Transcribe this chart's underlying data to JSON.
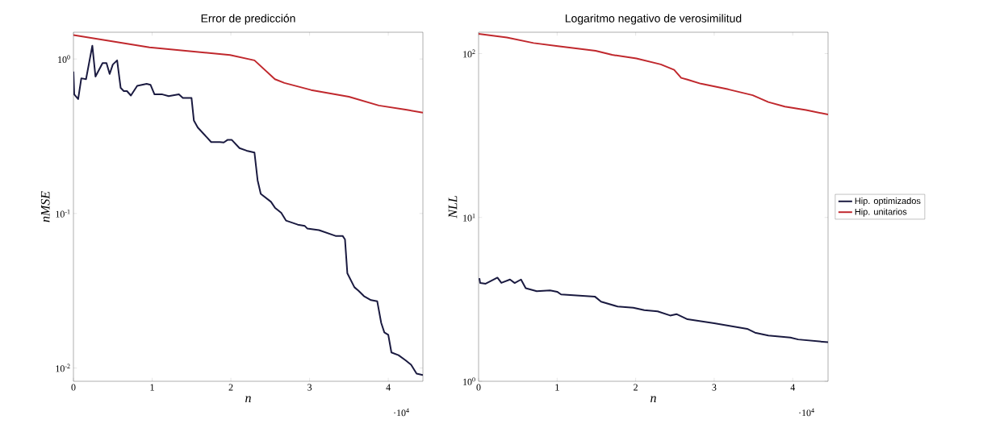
{
  "chart_data": [
    {
      "type": "line",
      "title": "Error de predicción",
      "xlabel": "n",
      "ylabel": "nMSE",
      "log": "y",
      "grid": false,
      "legend": false,
      "line_style": "solid",
      "marker": "none",
      "xlim": [
        0,
        4.44
      ],
      "ylim": [
        0.0082,
        1.49
      ],
      "xticks": [
        0,
        1,
        2,
        3,
        4
      ],
      "yticks": [
        {
          "value": 0.01,
          "label": "10$^{-2}$"
        },
        {
          "value": 0.1,
          "label": "10$^{-1}$"
        },
        {
          "value": 1,
          "label": "10$^{0}$"
        }
      ],
      "annotations": [
        "·10$^{4}$"
      ],
      "series": [
        {
          "color": "#1a1a40",
          "x": [
            0,
            0.01,
            0.06,
            0.1,
            0.16,
            0.24,
            0.28,
            0.37,
            0.42,
            0.46,
            0.5,
            0.555,
            0.6,
            0.64,
            0.68,
            0.73,
            0.81,
            0.93,
            0.98,
            1.03,
            1.13,
            1.21,
            1.34,
            1.39,
            1.5,
            1.53,
            1.58,
            1.75,
            1.86,
            1.91,
            1.96,
            2.01,
            2.11,
            2.2,
            2.3,
            2.34,
            2.38,
            2.51,
            2.56,
            2.64,
            2.7,
            2.85,
            2.94,
            2.97,
            3.12,
            3.33,
            3.42,
            3.45,
            3.48,
            3.57,
            3.62,
            3.69,
            3.78,
            3.86,
            3.91,
            3.95,
            4.0,
            4.04,
            4.13,
            4.22,
            4.29,
            4.36,
            4.44
          ],
          "values": [
            0.83,
            0.59,
            0.55,
            0.75,
            0.74,
            1.22,
            0.77,
            0.94,
            0.94,
            0.8,
            0.92,
            0.98,
            0.65,
            0.62,
            0.62,
            0.58,
            0.67,
            0.69,
            0.68,
            0.59,
            0.59,
            0.575,
            0.59,
            0.56,
            0.56,
            0.4,
            0.36,
            0.29,
            0.29,
            0.288,
            0.3,
            0.3,
            0.265,
            0.255,
            0.248,
            0.164,
            0.134,
            0.119,
            0.109,
            0.101,
            0.09,
            0.0847,
            0.083,
            0.08,
            0.078,
            0.0716,
            0.0716,
            0.068,
            0.041,
            0.0333,
            0.0317,
            0.0292,
            0.0275,
            0.027,
            0.0196,
            0.017,
            0.0164,
            0.0126,
            0.0121,
            0.0112,
            0.0105,
            0.0092,
            0.009
          ]
        },
        {
          "color": "#c0282d",
          "x": [
            0,
            0.966,
            1.99,
            2.3,
            2.56,
            2.68,
            3.02,
            3.5,
            3.88,
            4.22,
            4.44
          ],
          "values": [
            1.43,
            1.19,
            1.06,
            0.98,
            0.74,
            0.7,
            0.63,
            0.57,
            0.5,
            0.47,
            0.45
          ]
        }
      ]
    },
    {
      "type": "line",
      "title": "Logaritmo negativo de verosimilitud",
      "xlabel": "n",
      "ylabel": "NLL",
      "log": "y",
      "grid": false,
      "legend": "right",
      "line_style": "solid",
      "marker": "none",
      "xlim": [
        0,
        4.45
      ],
      "ylim": [
        1,
        135
      ],
      "xticks": [
        0,
        1,
        2,
        3,
        4
      ],
      "yticks": [
        {
          "value": 1,
          "label": "10$^{0}$"
        },
        {
          "value": 10,
          "label": "10$^{1}$"
        },
        {
          "value": 100,
          "label": "10$^{2}$"
        }
      ],
      "annotations": [
        "·10$^{4}$"
      ],
      "series": [
        {
          "name": "Hip. optimizados",
          "color": "#1a1a40",
          "x": [
            0.01,
            0.02,
            0.09,
            0.24,
            0.29,
            0.4,
            0.46,
            0.54,
            0.6,
            0.74,
            0.91,
            1.0,
            1.05,
            1.48,
            1.56,
            1.77,
            1.97,
            2.11,
            2.28,
            2.44,
            2.52,
            2.66,
            3.0,
            3.42,
            3.52,
            3.69,
            3.97,
            4.07,
            4.45
          ],
          "values": [
            4.26,
            3.98,
            3.94,
            4.29,
            3.99,
            4.18,
            3.98,
            4.18,
            3.7,
            3.55,
            3.59,
            3.52,
            3.39,
            3.29,
            3.06,
            2.86,
            2.81,
            2.72,
            2.67,
            2.52,
            2.57,
            2.39,
            2.26,
            2.09,
            1.98,
            1.9,
            1.85,
            1.8,
            1.73
          ]
        },
        {
          "name": "Hip. unitarios",
          "color": "#c0282d",
          "x": [
            0,
            0.36,
            0.7,
            1.01,
            1.49,
            1.7,
            2.01,
            2.32,
            2.49,
            2.58,
            2.66,
            2.83,
            3.18,
            3.49,
            3.69,
            3.9,
            4.17,
            4.45
          ],
          "values": [
            132,
            125.5,
            116,
            111,
            104,
            98.2,
            93.4,
            85.9,
            79.6,
            71.1,
            69.4,
            65.5,
            60.5,
            55.7,
            50.6,
            47.5,
            45.2,
            42.5
          ]
        }
      ]
    }
  ]
}
